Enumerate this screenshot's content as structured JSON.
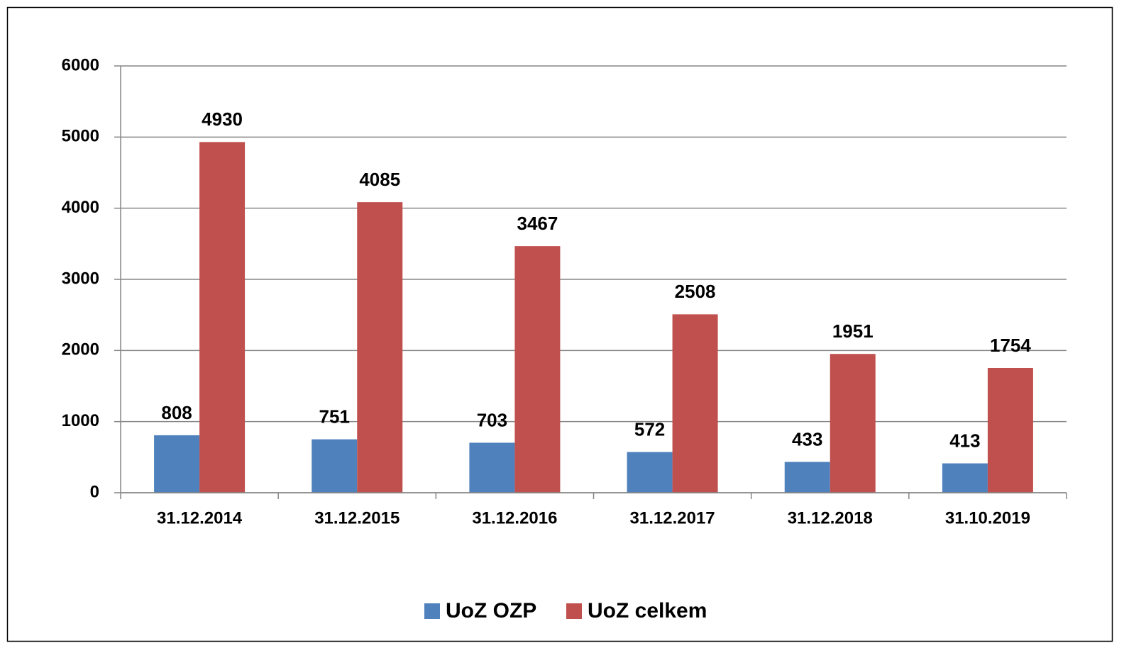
{
  "chart_data": {
    "type": "bar",
    "categories": [
      "31.12.2014",
      "31.12.2015",
      "31.12.2016",
      "31.12.2017",
      "31.12.2018",
      "31.10.2019"
    ],
    "series": [
      {
        "name": "UoZ OZP",
        "color": "#4f81bd",
        "values": [
          808,
          751,
          703,
          572,
          433,
          413
        ]
      },
      {
        "name": "UoZ celkem",
        "color": "#c0504d",
        "values": [
          4930,
          4085,
          3467,
          2508,
          1951,
          1754
        ]
      }
    ],
    "ylim": [
      0,
      6000
    ],
    "yticks": [
      0,
      1000,
      2000,
      3000,
      4000,
      5000,
      6000
    ],
    "grid": true,
    "legend": "bottom"
  }
}
